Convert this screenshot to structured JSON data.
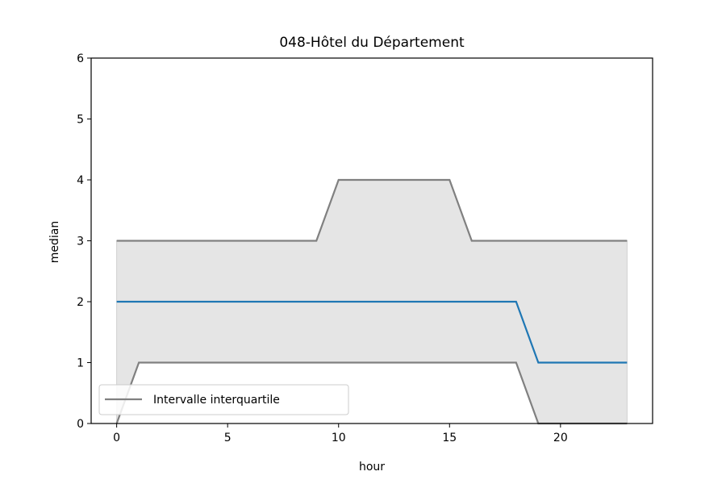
{
  "chart_data": {
    "type": "line",
    "title": "048-Hôtel du Département",
    "xlabel": "hour",
    "ylabel": "median",
    "xlim": [
      -1.15,
      24.15
    ],
    "ylim": [
      0,
      6
    ],
    "xticks": [
      0,
      5,
      10,
      15,
      20
    ],
    "yticks": [
      0,
      1,
      2,
      3,
      4,
      5,
      6
    ],
    "grid": false,
    "legend_position": "lower-left",
    "legend": [
      "Intervalle interquartile"
    ],
    "x": [
      0,
      1,
      2,
      3,
      4,
      5,
      6,
      7,
      8,
      9,
      10,
      11,
      12,
      13,
      14,
      15,
      16,
      17,
      18,
      19,
      20,
      21,
      22,
      23
    ],
    "series": [
      {
        "role": "median",
        "color": "#1f77b4",
        "values": [
          2,
          2,
          2,
          2,
          2,
          2,
          2,
          2,
          2,
          2,
          2,
          2,
          2,
          2,
          2,
          2,
          2,
          2,
          2,
          1,
          1,
          1,
          1,
          1
        ]
      },
      {
        "role": "q75",
        "color": "#808080",
        "values": [
          3,
          3,
          3,
          3,
          3,
          3,
          3,
          3,
          3,
          3,
          4,
          4,
          4,
          4,
          4,
          4,
          3,
          3,
          3,
          3,
          3,
          3,
          3,
          3
        ]
      },
      {
        "role": "q25",
        "color": "#808080",
        "values": [
          0,
          1,
          1,
          1,
          1,
          1,
          1,
          1,
          1,
          1,
          1,
          1,
          1,
          1,
          1,
          1,
          1,
          1,
          1,
          0,
          0,
          0,
          0,
          0
        ]
      }
    ],
    "fill_color": "#e5e5e5"
  }
}
